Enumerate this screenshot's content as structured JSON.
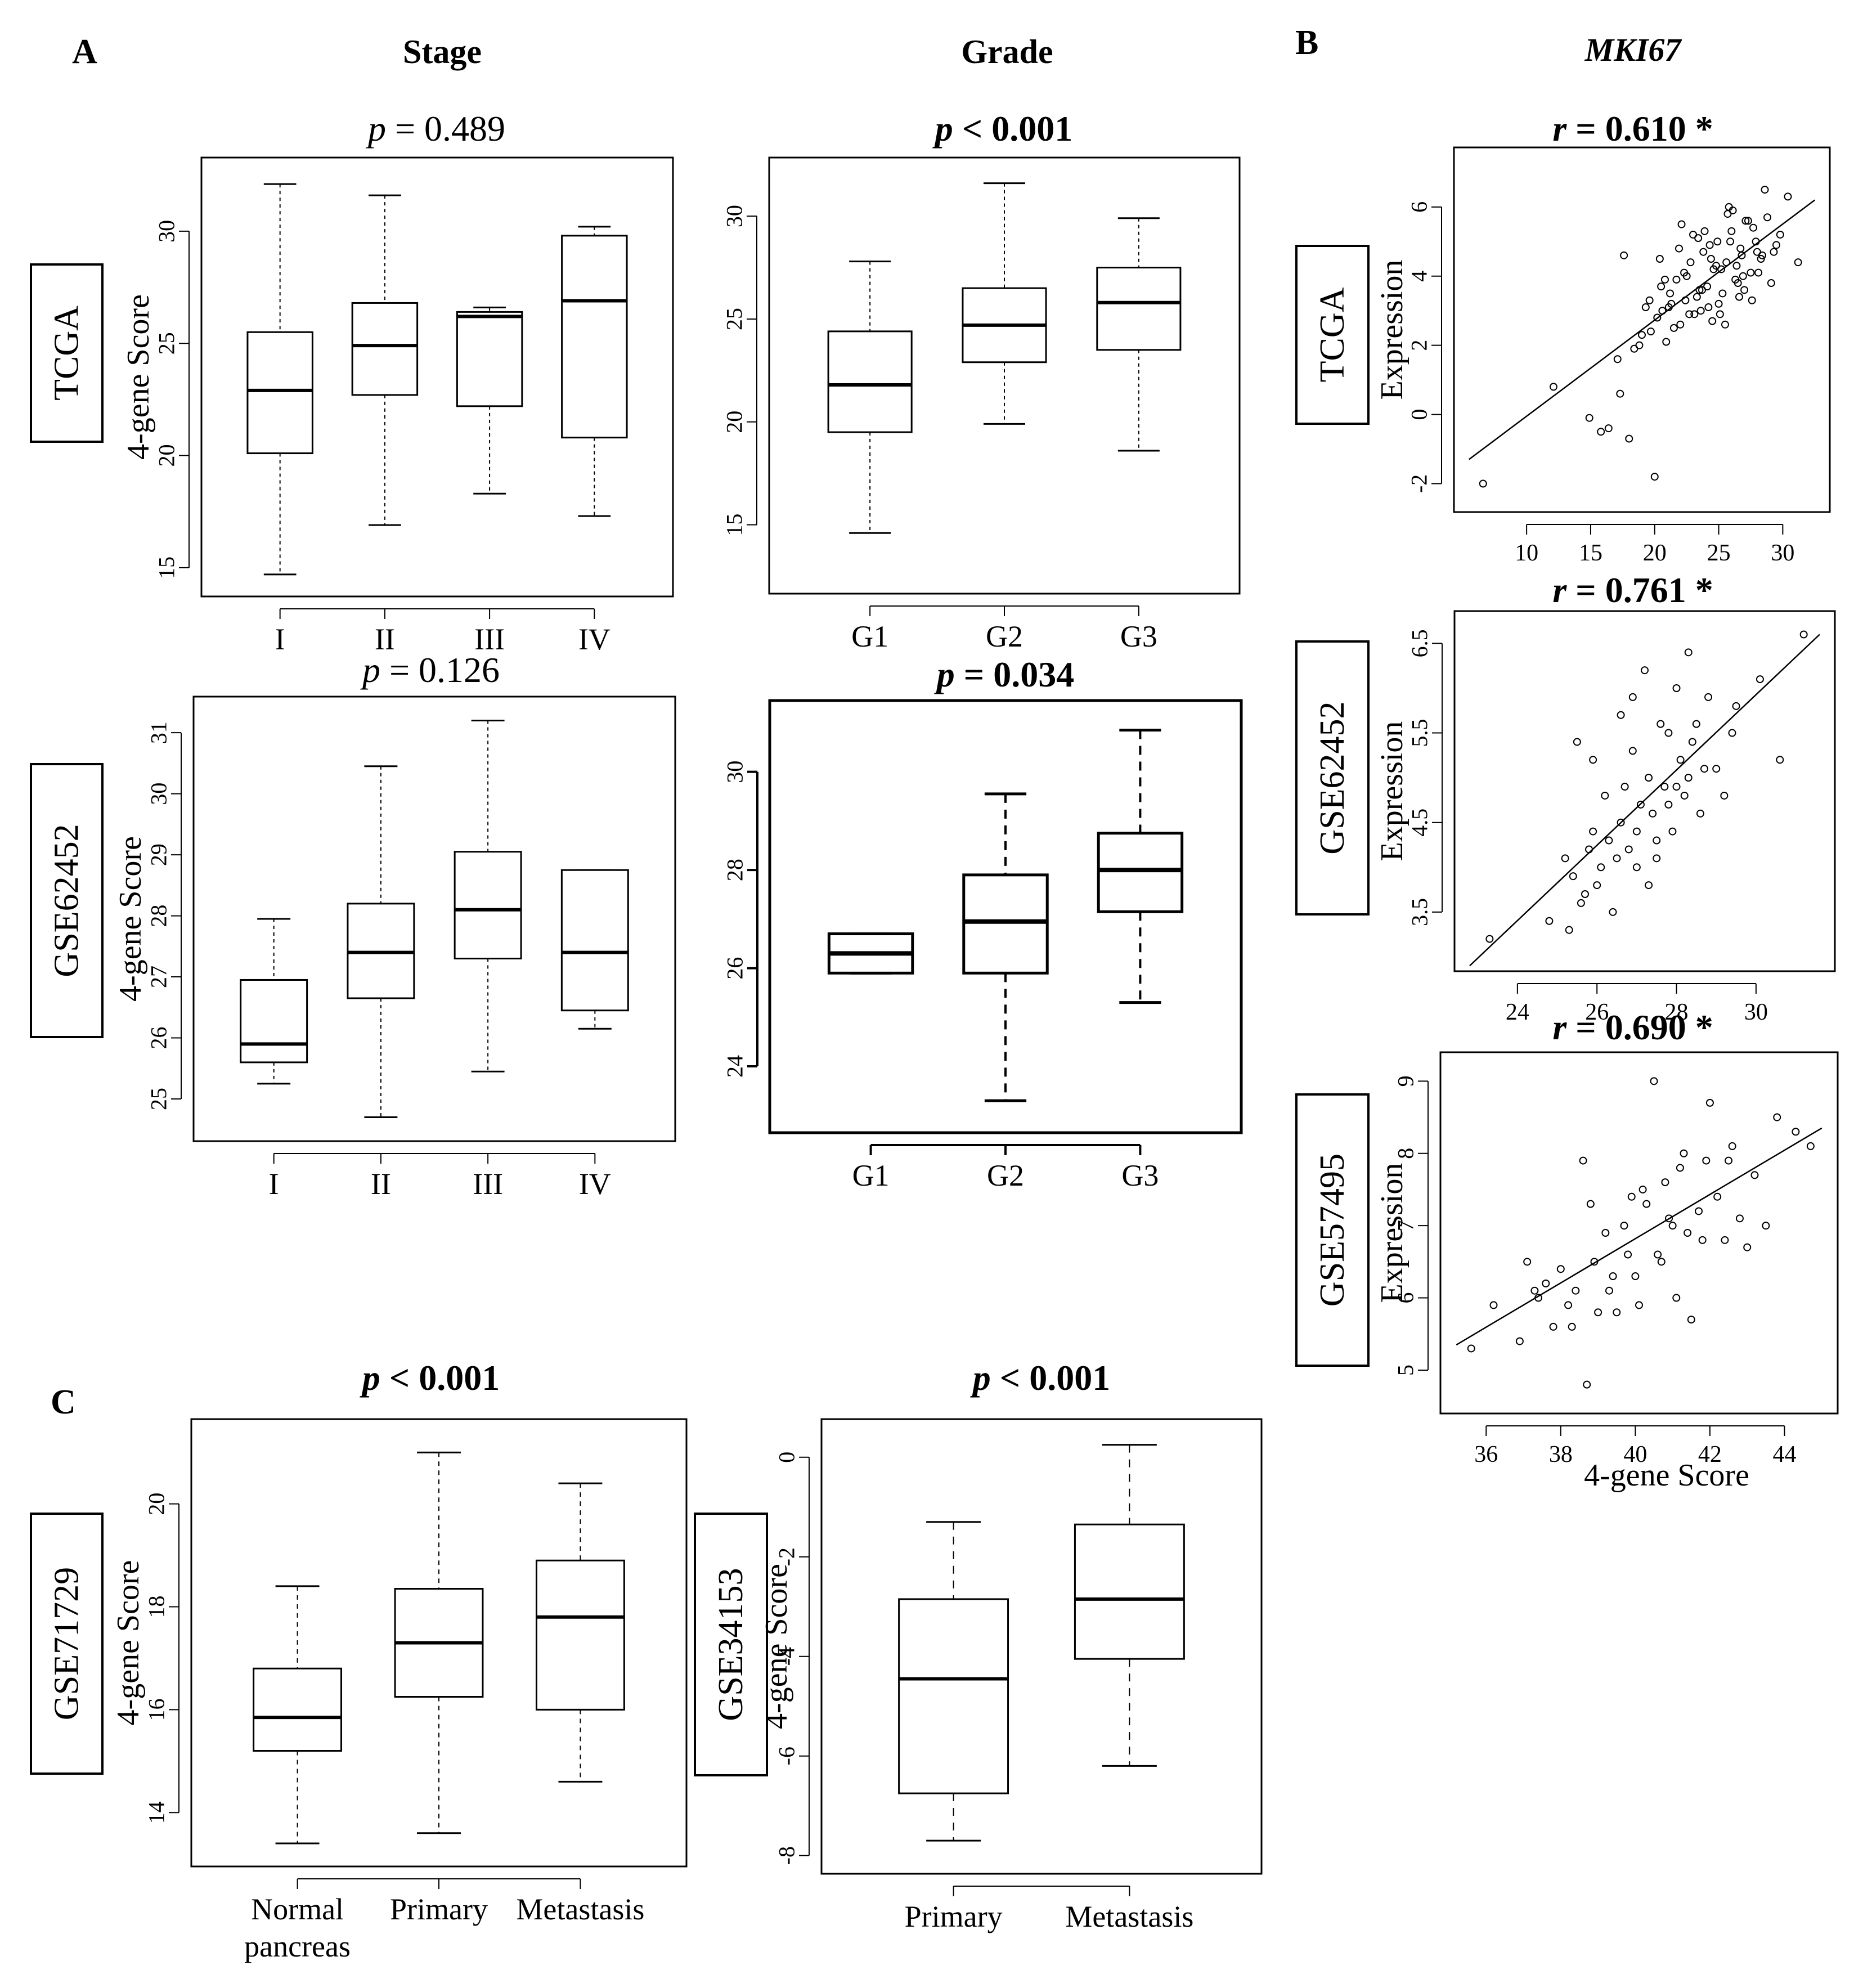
{
  "figure": {
    "panel_A_label": "A",
    "panel_B_label": "B",
    "panel_C_label": "C",
    "col_header_stage": "Stage",
    "col_header_grade": "Grade",
    "col_header_mki67": "MKI67",
    "shared_xlabel_B": "4-gene Score"
  },
  "chart_data": [
    {
      "id": "a_tcga_stage",
      "type": "box",
      "dataset": "TCGA",
      "title": "p = 0.489",
      "title_bold": false,
      "ylabel": "4-gene Score",
      "ylim": [
        14.5,
        32.5
      ],
      "yticks": [
        15,
        20,
        25,
        30
      ],
      "categories": [
        "I",
        "II",
        "III",
        "IV"
      ],
      "boxes": [
        {
          "whisker_low": 14.7,
          "q1": 20.1,
          "median": 22.9,
          "q3": 25.5,
          "whisker_high": 32.1
        },
        {
          "whisker_low": 16.9,
          "q1": 22.7,
          "median": 24.9,
          "q3": 26.8,
          "whisker_high": 31.6
        },
        {
          "whisker_low": 18.3,
          "q1": 22.2,
          "median": 26.2,
          "q3": 26.4,
          "whisker_high": 26.6
        },
        {
          "whisker_low": 17.3,
          "q1": 20.8,
          "median": 26.9,
          "q3": 29.8,
          "whisker_high": 30.2
        }
      ]
    },
    {
      "id": "a_tcga_grade",
      "type": "box",
      "dataset": "TCGA",
      "title": "p < 0.001",
      "title_bold": true,
      "ylabel": "",
      "ylim": [
        12.5,
        32.0
      ],
      "yticks": [
        15,
        20,
        25,
        30
      ],
      "categories": [
        "G1",
        "G2",
        "G3"
      ],
      "boxes": [
        {
          "whisker_low": 14.6,
          "q1": 19.5,
          "median": 21.8,
          "q3": 24.4,
          "whisker_high": 27.8
        },
        {
          "whisker_low": 19.9,
          "q1": 22.9,
          "median": 24.7,
          "q3": 26.5,
          "whisker_high": 31.6
        },
        {
          "whisker_low": 18.6,
          "q1": 23.5,
          "median": 25.8,
          "q3": 27.5,
          "whisker_high": 29.9
        }
      ]
    },
    {
      "id": "a_gse62452_stage",
      "type": "box",
      "dataset": "GSE62452",
      "title": "p = 0.126",
      "title_bold": false,
      "ylabel": "4-gene Score",
      "ylim": [
        24.6,
        31.3
      ],
      "yticks": [
        25,
        26,
        27,
        28,
        29,
        30,
        31
      ],
      "categories": [
        "I",
        "II",
        "III",
        "IV"
      ],
      "boxes": [
        {
          "whisker_low": 25.25,
          "q1": 25.6,
          "median": 25.9,
          "q3": 26.95,
          "whisker_high": 27.95
        },
        {
          "whisker_low": 24.7,
          "q1": 26.65,
          "median": 27.4,
          "q3": 28.2,
          "whisker_high": 30.45
        },
        {
          "whisker_low": 25.45,
          "q1": 27.3,
          "median": 28.1,
          "q3": 29.05,
          "whisker_high": 31.2
        },
        {
          "whisker_low": 26.15,
          "q1": 26.45,
          "median": 27.4,
          "q3": 28.75,
          "whisker_high": 28.75
        }
      ]
    },
    {
      "id": "a_gse62452_grade",
      "type": "box",
      "dataset": "GSE62452",
      "title": "p = 0.034",
      "title_bold": true,
      "ylabel": "",
      "ylim": [
        23.0,
        31.1
      ],
      "yticks": [
        24,
        26,
        28,
        30
      ],
      "categories": [
        "G1",
        "G2",
        "G3"
      ],
      "boxes": [
        {
          "whisker_low": 25.9,
          "q1": 25.9,
          "median": 26.3,
          "q3": 26.7,
          "whisker_high": 26.7
        },
        {
          "whisker_low": 23.3,
          "q1": 25.9,
          "median": 26.95,
          "q3": 27.9,
          "whisker_high": 29.55
        },
        {
          "whisker_low": 25.3,
          "q1": 27.15,
          "median": 28.0,
          "q3": 28.75,
          "whisker_high": 30.85
        }
      ]
    },
    {
      "id": "b_tcga",
      "type": "scatter",
      "dataset": "TCGA",
      "title": "r = 0.610 *",
      "title_bold": true,
      "xlabel": "",
      "ylabel": "Expression",
      "xlim": [
        5.5,
        32.5
      ],
      "ylim": [
        -2.4,
        7.3
      ],
      "xticks": [
        10,
        15,
        20,
        25,
        30
      ],
      "yticks": [
        -2,
        0,
        2,
        4,
        6
      ],
      "fit_line": {
        "x": [
          5.5,
          32.5
        ],
        "y": [
          -1.3,
          6.2
        ]
      },
      "points": {
        "x": [
          6.6,
          12.1,
          14.9,
          15.8,
          16.4,
          17.1,
          17.3,
          17.6,
          18.0,
          18.4,
          19.0,
          19.6,
          20.0,
          20.2,
          20.5,
          20.9,
          21.3,
          21.7,
          22.0,
          22.4,
          22.8,
          23.1,
          23.5,
          23.8,
          24.2,
          24.6,
          24.9,
          25.3,
          25.6,
          26.0,
          26.3,
          26.7,
          27.1,
          27.5,
          27.9,
          28.3,
          28.8,
          29.3,
          29.8,
          30.4,
          31.2,
          20.8,
          21.5,
          22.3,
          23.0,
          23.6,
          24.3,
          25.0,
          25.7,
          26.4,
          27.0,
          27.7,
          28.4,
          29.1,
          22.1,
          23.3,
          24.5,
          25.8,
          26.9,
          19.7,
          20.4,
          21.1,
          21.9,
          22.7,
          23.4,
          24.1,
          24.8,
          25.5,
          26.1,
          26.8,
          27.6,
          28.6,
          29.5,
          21.2,
          22.5,
          23.9,
          25.2,
          26.6,
          28.0,
          23.7,
          24.4,
          25.1,
          25.9,
          26.5,
          27.3,
          28.1,
          18.8,
          19.3,
          20.6
        ],
        "y": [
          -2.0,
          0.8,
          -0.1,
          -0.5,
          -0.4,
          1.6,
          0.6,
          4.6,
          -0.7,
          1.9,
          2.3,
          3.3,
          -1.8,
          2.8,
          3.7,
          2.1,
          3.2,
          3.9,
          2.6,
          3.3,
          4.4,
          2.9,
          3.6,
          4.7,
          3.1,
          4.2,
          5.0,
          3.5,
          4.4,
          5.3,
          3.9,
          4.8,
          5.6,
          4.1,
          5.0,
          4.5,
          5.7,
          4.7,
          5.2,
          6.3,
          4.4,
          3.9,
          2.5,
          4.1,
          5.2,
          3.0,
          4.9,
          3.2,
          5.8,
          4.3,
          3.6,
          5.4,
          4.6,
          3.8,
          5.5,
          3.4,
          2.7,
          6.0,
          4.0,
          2.4,
          4.5,
          3.1,
          4.8,
          2.9,
          5.1,
          3.7,
          4.3,
          2.6,
          5.9,
          4.6,
          3.3,
          6.5,
          4.9,
          3.5,
          4.0,
          5.3,
          4.2,
          3.4,
          4.7,
          3.6,
          4.5,
          2.9,
          5.0,
          3.8,
          5.6,
          4.1,
          2.0,
          3.1,
          3.0
        ]
      }
    },
    {
      "id": "b_gse62452",
      "type": "scatter",
      "dataset": "GSE62452",
      "title": "r = 0.761 *",
      "title_bold": true,
      "xlabel": "",
      "ylabel": "Expression",
      "xlim": [
        22.8,
        31.6
      ],
      "ylim": [
        3.0,
        6.7
      ],
      "xticks": [
        24,
        26,
        28,
        30
      ],
      "yticks": [
        3.5,
        4.5,
        5.5,
        6.5
      ],
      "fit_line": {
        "x": [
          22.8,
          31.6
        ],
        "y": [
          2.9,
          6.6
        ]
      },
      "points": {
        "x": [
          23.3,
          24.8,
          25.2,
          25.4,
          25.5,
          25.6,
          25.7,
          25.8,
          25.9,
          26.0,
          26.1,
          26.2,
          26.3,
          26.5,
          26.6,
          26.7,
          26.8,
          26.9,
          27.0,
          27.1,
          27.2,
          27.3,
          27.4,
          27.5,
          27.6,
          27.7,
          27.8,
          27.9,
          28.0,
          28.1,
          28.2,
          28.3,
          28.4,
          28.5,
          28.6,
          28.8,
          29.0,
          29.2,
          29.5,
          30.1,
          30.6,
          31.2,
          25.3,
          26.4,
          27.0,
          27.5,
          28.0,
          28.7,
          26.9,
          27.3,
          25.9,
          26.6,
          28.3,
          29.4,
          27.8
        ],
        "y": [
          3.2,
          3.4,
          4.1,
          3.9,
          5.4,
          3.6,
          3.7,
          4.2,
          5.2,
          3.8,
          4.0,
          4.8,
          4.3,
          4.1,
          4.5,
          4.9,
          4.2,
          5.9,
          4.4,
          4.7,
          6.2,
          5.0,
          4.6,
          4.1,
          5.6,
          4.9,
          5.5,
          4.4,
          6.0,
          5.2,
          4.8,
          6.4,
          5.4,
          5.6,
          4.6,
          5.9,
          5.1,
          4.8,
          5.8,
          6.1,
          5.2,
          6.6,
          3.3,
          3.5,
          4.0,
          4.3,
          4.9,
          5.1,
          5.3,
          3.8,
          4.4,
          5.7,
          5.0,
          5.5,
          4.7
        ]
      }
    },
    {
      "id": "b_gse57495",
      "type": "scatter",
      "dataset": "GSE57495",
      "title": "r = 0.690 *",
      "title_bold": true,
      "xlabel": "4-gene Score",
      "ylabel": "Expression",
      "xlim": [
        35.2,
        45.0
      ],
      "ylim": [
        4.6,
        9.2
      ],
      "xticks": [
        36,
        38,
        40,
        42,
        44
      ],
      "yticks": [
        5,
        6,
        7,
        8,
        9
      ],
      "fit_line": {
        "x": [
          35.2,
          45.0
        ],
        "y": [
          5.35,
          8.35
        ]
      },
      "points": {
        "x": [
          35.6,
          36.2,
          36.9,
          37.1,
          37.3,
          37.6,
          37.8,
          38.0,
          38.2,
          38.4,
          38.6,
          38.7,
          38.9,
          39.0,
          39.2,
          39.4,
          39.5,
          39.7,
          39.8,
          40.0,
          40.1,
          40.3,
          40.5,
          40.6,
          40.8,
          40.9,
          41.1,
          41.2,
          41.4,
          41.5,
          41.7,
          41.9,
          42.0,
          42.2,
          42.4,
          42.6,
          42.8,
          43.0,
          43.2,
          43.5,
          43.8,
          44.3,
          44.7,
          37.4,
          38.8,
          39.3,
          40.2,
          41.0,
          41.8,
          42.5,
          39.9,
          40.7,
          38.3,
          41.3
        ],
        "y": [
          5.3,
          5.9,
          5.4,
          6.5,
          6.1,
          6.2,
          5.6,
          6.4,
          5.9,
          6.1,
          7.9,
          4.8,
          6.5,
          5.8,
          6.9,
          6.3,
          5.8,
          7.0,
          6.6,
          6.3,
          5.9,
          7.3,
          9.0,
          6.6,
          7.6,
          7.1,
          6.0,
          7.8,
          6.9,
          5.7,
          7.2,
          7.9,
          8.7,
          7.4,
          6.8,
          8.1,
          7.1,
          6.7,
          7.7,
          7.0,
          8.5,
          8.3,
          8.1,
          6.0,
          7.3,
          6.1,
          7.5,
          7.0,
          6.8,
          7.9,
          7.4,
          6.5,
          5.6,
          8.0
        ]
      }
    },
    {
      "id": "c_gse71729",
      "type": "box",
      "dataset": "GSE71729",
      "title": "p < 0.001",
      "title_bold": true,
      "ylabel": "4-gene Score",
      "ylim": [
        13.3,
        21.3
      ],
      "yticks": [
        14,
        16,
        18,
        20
      ],
      "categories": [
        "Normal\npancreas",
        "Primary",
        "Metastasis"
      ],
      "boxes": [
        {
          "whisker_low": 13.4,
          "q1": 15.2,
          "median": 15.85,
          "q3": 16.8,
          "whisker_high": 18.4
        },
        {
          "whisker_low": 13.6,
          "q1": 16.25,
          "median": 17.3,
          "q3": 18.35,
          "whisker_high": 21.0
        },
        {
          "whisker_low": 14.6,
          "q1": 16.0,
          "median": 17.8,
          "q3": 18.9,
          "whisker_high": 20.4
        }
      ]
    },
    {
      "id": "c_gse34153",
      "type": "box",
      "dataset": "GSE34153",
      "title": "p < 0.001",
      "title_bold": true,
      "ylabel": "4-gene Score",
      "ylim": [
        -8.0,
        0.4
      ],
      "yticks": [
        -8,
        -6,
        -4,
        -2,
        0
      ],
      "categories": [
        "Primary",
        "Metastasis"
      ],
      "boxes": [
        {
          "whisker_low": -7.7,
          "q1": -6.75,
          "median": -4.45,
          "q3": -2.85,
          "whisker_high": -1.3
        },
        {
          "whisker_low": -6.2,
          "q1": -4.05,
          "median": -2.85,
          "q3": -1.35,
          "whisker_high": 0.25
        }
      ]
    }
  ]
}
